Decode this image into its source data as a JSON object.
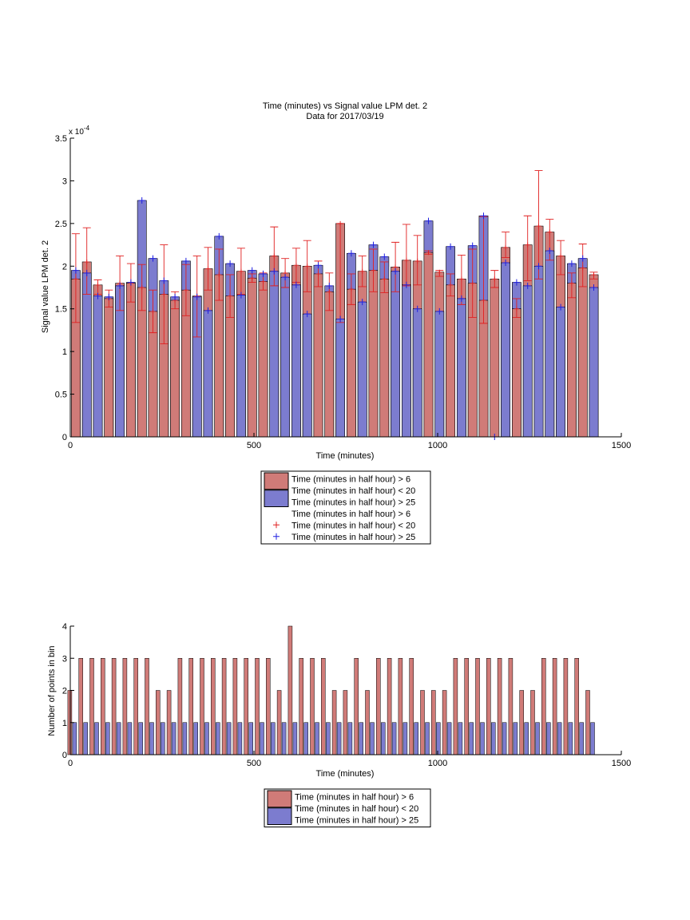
{
  "colors": {
    "red_fill": "#d07b78",
    "blue_fill": "#7c7ccf",
    "red_marker": "#e02020",
    "blue_marker": "#2020e0",
    "axis": "#000000"
  },
  "chart_data": [
    {
      "type": "bar",
      "title": "Time (minutes) vs Signal value LPM det. 2",
      "subtitle": "Data for 2017/03/19",
      "xlabel": "Time (minutes)",
      "ylabel": "Signal value LPM det. 2",
      "y_exponent_label": "x 10",
      "y_exponent_power": "-4",
      "xlim": [
        0,
        1500
      ],
      "ylim": [
        0,
        3.5
      ],
      "xticks": [
        "0",
        "500",
        "1000",
        "1500"
      ],
      "yticks": [
        "0",
        "0.5",
        "1",
        "1.5",
        "2",
        "2.5",
        "3",
        "3.5"
      ],
      "grid": false,
      "legend_placement": "below",
      "legend": [
        {
          "label": "Time (minutes in half hour) > 6",
          "kind": "bar",
          "color": "#d07b78"
        },
        {
          "label": "Time (minutes in half hour) < 20",
          "kind": "none"
        },
        {
          "label": "Time (minutes in half hour) > 25",
          "kind": "bar",
          "color": "#7c7ccf"
        },
        {
          "label": "Time (minutes in half hour) > 6",
          "kind": "none"
        },
        {
          "label": "Time (minutes in half hour) < 20",
          "kind": "plus",
          "color": "#e02020"
        },
        {
          "label": "Time (minutes in half hour) > 25",
          "kind": "plus",
          "color": "#2020e0"
        }
      ],
      "x": [
        15,
        45,
        75,
        105,
        135,
        165,
        195,
        225,
        255,
        285,
        315,
        345,
        375,
        405,
        435,
        465,
        495,
        525,
        555,
        585,
        615,
        645,
        675,
        705,
        735,
        765,
        795,
        825,
        855,
        885,
        915,
        945,
        975,
        1005,
        1035,
        1065,
        1095,
        1125,
        1155,
        1185,
        1215,
        1245,
        1275,
        1305,
        1335,
        1365,
        1395,
        1425
      ],
      "series": [
        {
          "name": "Time (minutes in half hour) > 6",
          "values": [
            1.85,
            2.05,
            1.78,
            1.62,
            1.8,
            1.8,
            1.75,
            1.47,
            1.67,
            1.6,
            1.72,
            1.65,
            1.97,
            1.9,
            1.65,
            1.94,
            1.86,
            1.82,
            2.12,
            1.92,
            2.01,
            2.0,
            1.91,
            1.7,
            2.5,
            1.73,
            1.94,
            1.95,
            1.85,
            1.99,
            2.07,
            2.06,
            2.16,
            1.93,
            1.78,
            1.85,
            1.8,
            1.6,
            1.85,
            2.22,
            1.5,
            2.25,
            2.47,
            2.4,
            2.12,
            1.8,
            1.98,
            1.9
          ],
          "err_low": [
            0.51,
            0.38,
            0.11,
            0.1,
            0.32,
            0.22,
            0.27,
            0.25,
            0.58,
            0.1,
            0.3,
            0.48,
            0.25,
            0.3,
            0.25,
            0.27,
            0.05,
            0.1,
            0.35,
            0.17,
            0.2,
            0.3,
            0.15,
            0.22,
            1.16,
            0.18,
            0.18,
            0.25,
            0.16,
            0.29,
            0.3,
            0.28,
            0.02,
            0.05,
            0.13,
            0.3,
            0.4,
            0.27,
            0.1,
            0.12,
            0.1,
            0.42,
            0.62,
            0.33,
            0.22,
            0.17,
            0.22,
            0.05
          ],
          "err_high": [
            0.53,
            0.4,
            0.06,
            0.1,
            0.32,
            0.23,
            0.27,
            0.25,
            0.58,
            0.1,
            0.3,
            0.47,
            0.25,
            0.3,
            0.25,
            0.27,
            0.05,
            0.1,
            0.34,
            0.17,
            0.2,
            0.3,
            0.15,
            0.22,
            0.0,
            0.18,
            0.18,
            0.25,
            0.2,
            0.29,
            0.42,
            0.3,
            0.02,
            0.02,
            0.13,
            0.28,
            0.4,
            0.98,
            0.1,
            0.18,
            0.12,
            0.34,
            0.65,
            0.15,
            0.18,
            0.12,
            0.28,
            0.03
          ]
        },
        {
          "name": "Time (minutes in half hour) > 25",
          "values": [
            1.95,
            1.92,
            1.65,
            1.64,
            1.77,
            1.81,
            2.77,
            2.09,
            1.83,
            1.64,
            2.06,
            1.64,
            1.48,
            2.35,
            2.03,
            1.66,
            1.95,
            1.91,
            1.94,
            1.87,
            1.78,
            1.44,
            2.01,
            1.77,
            1.38,
            2.15,
            1.58,
            2.25,
            2.11,
            1.94,
            1.78,
            1.5,
            2.53,
            1.47,
            2.23,
            1.62,
            2.24,
            2.59,
            0.0,
            2.04,
            1.81,
            1.77,
            2.0,
            2.18,
            1.52,
            2.03,
            2.09,
            1.75
          ]
        }
      ]
    },
    {
      "type": "bar",
      "xlabel": "Time (minutes)",
      "ylabel": "Number of points in bin",
      "xlim": [
        0,
        1500
      ],
      "ylim": [
        0,
        4
      ],
      "xticks": [
        "0",
        "500",
        "1000",
        "1500"
      ],
      "yticks": [
        "0",
        "1",
        "2",
        "3",
        "4"
      ],
      "grid": false,
      "legend_placement": "below",
      "legend": [
        {
          "label": "Time (minutes in half hour) > 6",
          "kind": "bar",
          "color": "#d07b78"
        },
        {
          "label": "Time (minutes in half hour) < 20",
          "kind": "none"
        },
        {
          "label": "Time (minutes in half hour) > 25",
          "kind": "bar",
          "color": "#7c7ccf"
        }
      ],
      "x": [
        15,
        45,
        75,
        105,
        135,
        165,
        195,
        225,
        255,
        285,
        315,
        345,
        375,
        405,
        435,
        465,
        495,
        525,
        555,
        585,
        615,
        645,
        675,
        705,
        735,
        765,
        795,
        825,
        855,
        885,
        915,
        945,
        975,
        1005,
        1035,
        1065,
        1095,
        1125,
        1155,
        1185,
        1215,
        1245,
        1275,
        1305,
        1335,
        1365,
        1395,
        1425
      ],
      "series": [
        {
          "name": "Time (minutes in half hour) > 6",
          "values": [
            2,
            3,
            3,
            3,
            3,
            3,
            3,
            3,
            2,
            2,
            3,
            3,
            3,
            3,
            3,
            3,
            3,
            3,
            3,
            2,
            4,
            3,
            3,
            3,
            2,
            2,
            3,
            2,
            3,
            3,
            3,
            3,
            2,
            2,
            2,
            3,
            3,
            3,
            3,
            3,
            3,
            2,
            2,
            3,
            3,
            3,
            3,
            2
          ]
        },
        {
          "name": "Time (minutes in half hour) > 25",
          "values": [
            1,
            1,
            1,
            1,
            1,
            1,
            1,
            1,
            1,
            1,
            1,
            1,
            1,
            1,
            1,
            1,
            1,
            1,
            1,
            1,
            1,
            1,
            1,
            1,
            1,
            1,
            1,
            1,
            1,
            1,
            1,
            1,
            1,
            1,
            1,
            1,
            1,
            1,
            1,
            1,
            1,
            1,
            1,
            1,
            1,
            1,
            1,
            1
          ]
        }
      ]
    }
  ]
}
